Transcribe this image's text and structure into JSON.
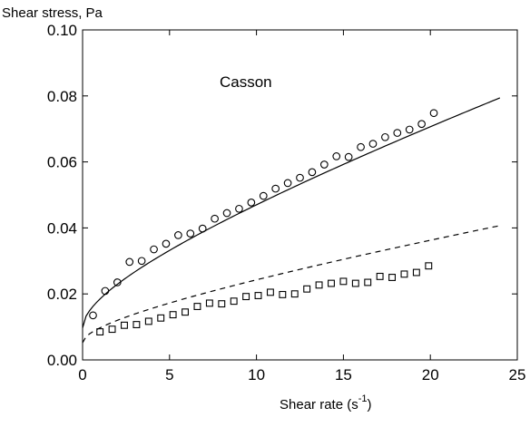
{
  "chart_data": {
    "type": "scatter",
    "ylabel": "Shear stress, Pa",
    "xlabel": "Shear rate  (s",
    "xlabel_superscript": "-1",
    "xlabel_suffix": ")",
    "annotation": "Casson",
    "xlim": [
      0,
      25
    ],
    "ylim": [
      0.0,
      0.1
    ],
    "xticks": [
      0,
      5,
      10,
      15,
      20,
      25
    ],
    "xtick_labels": [
      "0",
      "5",
      "10",
      "15",
      "20",
      "25"
    ],
    "yticks": [
      0.0,
      0.02,
      0.04,
      0.06,
      0.08,
      0.1
    ],
    "ytick_labels": [
      "0.00",
      "0.02",
      "0.04",
      "0.06",
      "0.08",
      "0.10"
    ],
    "grid": false,
    "series": [
      {
        "marker": "circle",
        "color": "#000000",
        "x": [
          0.6,
          1.3,
          2.0,
          2.7,
          3.4,
          4.1,
          4.8,
          5.5,
          6.2,
          6.9,
          7.6,
          8.3,
          9.0,
          9.7,
          10.4,
          11.1,
          11.8,
          12.5,
          13.2,
          13.9,
          14.6,
          15.3,
          16.0,
          16.7,
          17.4,
          18.1,
          18.8,
          19.5,
          20.2
        ],
        "y": [
          0.0135,
          0.0209,
          0.0235,
          0.0297,
          0.03,
          0.0335,
          0.0352,
          0.0378,
          0.0383,
          0.0398,
          0.0428,
          0.0445,
          0.0458,
          0.0477,
          0.0497,
          0.0519,
          0.0536,
          0.0552,
          0.0569,
          0.0592,
          0.0617,
          0.0615,
          0.0645,
          0.0655,
          0.0675,
          0.0688,
          0.0698,
          0.0715,
          0.0748
        ]
      },
      {
        "marker": "square",
        "color": "#000000",
        "x": [
          1.0,
          1.7,
          2.4,
          3.1,
          3.8,
          4.5,
          5.2,
          5.9,
          6.6,
          7.3,
          8.0,
          8.7,
          9.4,
          10.1,
          10.8,
          11.5,
          12.2,
          12.9,
          13.6,
          14.3,
          15.0,
          15.7,
          16.4,
          17.1,
          17.8,
          18.5,
          19.2,
          19.9
        ],
        "y": [
          0.0085,
          0.0093,
          0.0105,
          0.0107,
          0.0117,
          0.0127,
          0.0137,
          0.0145,
          0.0162,
          0.0172,
          0.017,
          0.0178,
          0.0192,
          0.0195,
          0.0205,
          0.0198,
          0.02,
          0.0215,
          0.0227,
          0.0232,
          0.0238,
          0.0232,
          0.0235,
          0.0253,
          0.025,
          0.026,
          0.0265,
          0.0285
        ]
      }
    ],
    "fits": [
      {
        "model": "Casson",
        "style": "solid",
        "color": "#000000",
        "tau0": 0.0097,
        "eta": 0.0014,
        "x_range": [
          0,
          24
        ]
      },
      {
        "model": "Casson",
        "style": "dashed",
        "color": "#000000",
        "tau0": 0.0052,
        "eta": 0.0007,
        "x_range": [
          0,
          24
        ]
      }
    ]
  }
}
